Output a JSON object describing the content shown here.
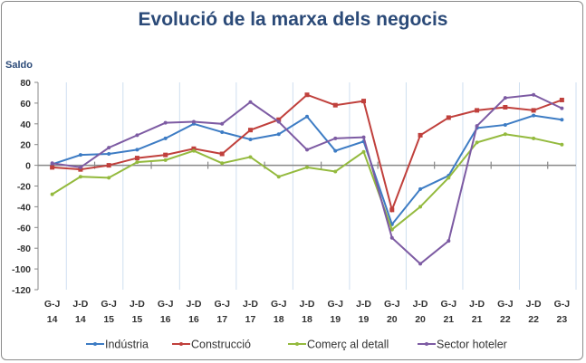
{
  "chart_data": {
    "type": "line",
    "title": "Evolució de la marxa dels negocis",
    "ylabel": "Saldo",
    "xlabel": "",
    "ylim": [
      -120,
      80
    ],
    "yticks": [
      80,
      60,
      40,
      20,
      0,
      -20,
      -40,
      -60,
      -80,
      -100,
      -120
    ],
    "grid": "vertical lines at year boundaries",
    "legend": "bottom",
    "categories": [
      [
        "G-J",
        "14"
      ],
      [
        "J-D",
        "14"
      ],
      [
        "G-J",
        "15"
      ],
      [
        "J-D",
        "15"
      ],
      [
        "G-J",
        "16"
      ],
      [
        "J-D",
        "16"
      ],
      [
        "G-J",
        "17"
      ],
      [
        "J-D",
        "17"
      ],
      [
        "G-J",
        "18"
      ],
      [
        "J-D",
        "18"
      ],
      [
        "G-J",
        "19"
      ],
      [
        "J-D",
        "19"
      ],
      [
        "G-J",
        "20"
      ],
      [
        "J-D",
        "20"
      ],
      [
        "G-J",
        "21"
      ],
      [
        "J-D",
        "21"
      ],
      [
        "G-J",
        "22"
      ],
      [
        "J-D",
        "22"
      ],
      [
        "G-J",
        "23"
      ]
    ],
    "series": [
      {
        "name": "Indústria",
        "color": "#3d7cc4",
        "values": [
          1,
          10,
          11,
          15,
          26,
          40,
          32,
          25,
          30,
          47,
          14,
          23,
          -57,
          -23,
          -10,
          36,
          39,
          48,
          44
        ]
      },
      {
        "name": "Construcció",
        "color": "#c0403c",
        "values": [
          -2,
          -4,
          0,
          7,
          10,
          16,
          11,
          34,
          44,
          68,
          58,
          62,
          -43,
          29,
          46,
          53,
          56,
          53,
          63
        ]
      },
      {
        "name": "Comerç al detall",
        "color": "#94ba3e",
        "values": [
          -28,
          -11,
          -12,
          3,
          5,
          14,
          2,
          8,
          -11,
          -2,
          -6,
          13,
          -62,
          -40,
          -12,
          22,
          30,
          26,
          20
        ]
      },
      {
        "name": "Sector hoteler",
        "color": "#7d5ba3",
        "values": [
          2,
          -2,
          17,
          29,
          41,
          42,
          40,
          61,
          42,
          15,
          26,
          27,
          -70,
          -95,
          -73,
          38,
          65,
          68,
          55
        ]
      }
    ]
  }
}
